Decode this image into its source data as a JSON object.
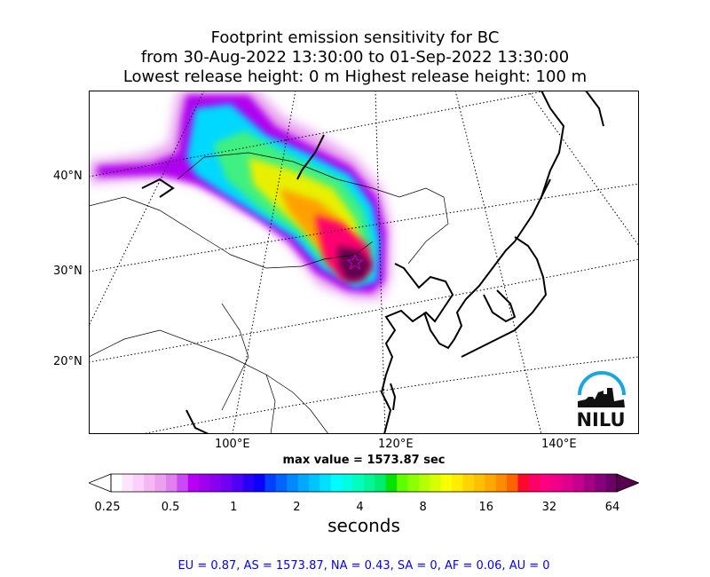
{
  "title": {
    "line1": "Footprint emission sensitivity for BC",
    "line2": "from 30-Aug-2022 13:30:00 to 01-Sep-2022 13:30:00",
    "line3": "Lowest release height: 0 m      Highest release height: 100 m"
  },
  "map": {
    "lat_labels": [
      "40°N",
      "30°N",
      "20°N"
    ],
    "lon_labels": [
      "100°E",
      "120°E",
      "140°E"
    ],
    "release_marker": "star-icon",
    "logo_text": "NILU",
    "logo_color": "#1aa7e0"
  },
  "max_value": "max value = 1573.87 sec",
  "colorbar": {
    "ticks": [
      "0.25",
      "0.5",
      "1",
      "2",
      "4",
      "8",
      "16",
      "32",
      "64"
    ],
    "unit": "seconds",
    "under_color": "#ffffff",
    "over_color": "#5a0050",
    "colors": [
      "#ffffff",
      "#ffe4ff",
      "#fcd0fc",
      "#f4b8f4",
      "#eca0f0",
      "#e080f0",
      "#cc48f4",
      "#b800f4",
      "#a000f0",
      "#8800f0",
      "#7000f4",
      "#5000f4",
      "#2800f8",
      "#0a00ff",
      "#0040ff",
      "#0064ff",
      "#0088ff",
      "#00a8ff",
      "#00c4ff",
      "#00e0ff",
      "#00fcff",
      "#00ffe0",
      "#00ffbc",
      "#00f898",
      "#00ec70",
      "#00e400",
      "#60ff00",
      "#8cff00",
      "#b4ff00",
      "#d8ff00",
      "#f8ff00",
      "#ffec00",
      "#ffd400",
      "#ffc000",
      "#ffa800",
      "#ff8c00",
      "#ff6400",
      "#ff0830",
      "#ff0064",
      "#ff0080",
      "#f00088",
      "#dc008c",
      "#c4008c",
      "#a80084",
      "#88007c",
      "#6c0068"
    ]
  },
  "stats": "EU = 0.87,  AS = 1573.87,  NA = 0.43,  SA = 0,  AF = 0.06,  AU = 0"
}
